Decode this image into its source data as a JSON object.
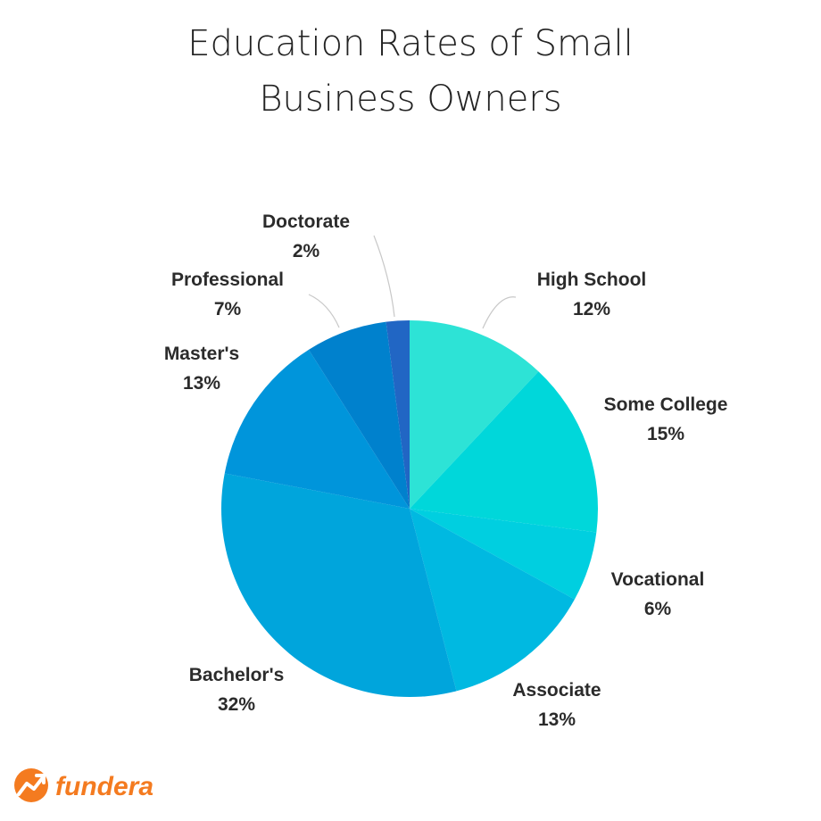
{
  "chart_data": {
    "type": "pie",
    "title_lines": [
      "Education Rates of Small",
      "Business Owners"
    ],
    "slices": [
      {
        "label": "High School",
        "value": 12,
        "value_label": "12%",
        "color": "#2de3d6"
      },
      {
        "label": "Some College",
        "value": 15,
        "value_label": "15%",
        "color": "#00d7da"
      },
      {
        "label": "Vocational",
        "value": 6,
        "value_label": "6%",
        "color": "#00cfe0"
      },
      {
        "label": "Associate",
        "value": 13,
        "value_label": "13%",
        "color": "#00b9e1"
      },
      {
        "label": "Bachelor's",
        "value": 32,
        "value_label": "32%",
        "color": "#00a5dc"
      },
      {
        "label": "Master's",
        "value": 13,
        "value_label": "13%",
        "color": "#0095db"
      },
      {
        "label": "Professional",
        "value": 7,
        "value_label": "7%",
        "color": "#0081cd"
      },
      {
        "label": "Doctorate",
        "value": 2,
        "value_label": "2%",
        "color": "#2166c4"
      }
    ],
    "start": "12 o'clock",
    "direction": "clockwise"
  },
  "brand": {
    "name": "fundera",
    "color": "#f47b20"
  }
}
